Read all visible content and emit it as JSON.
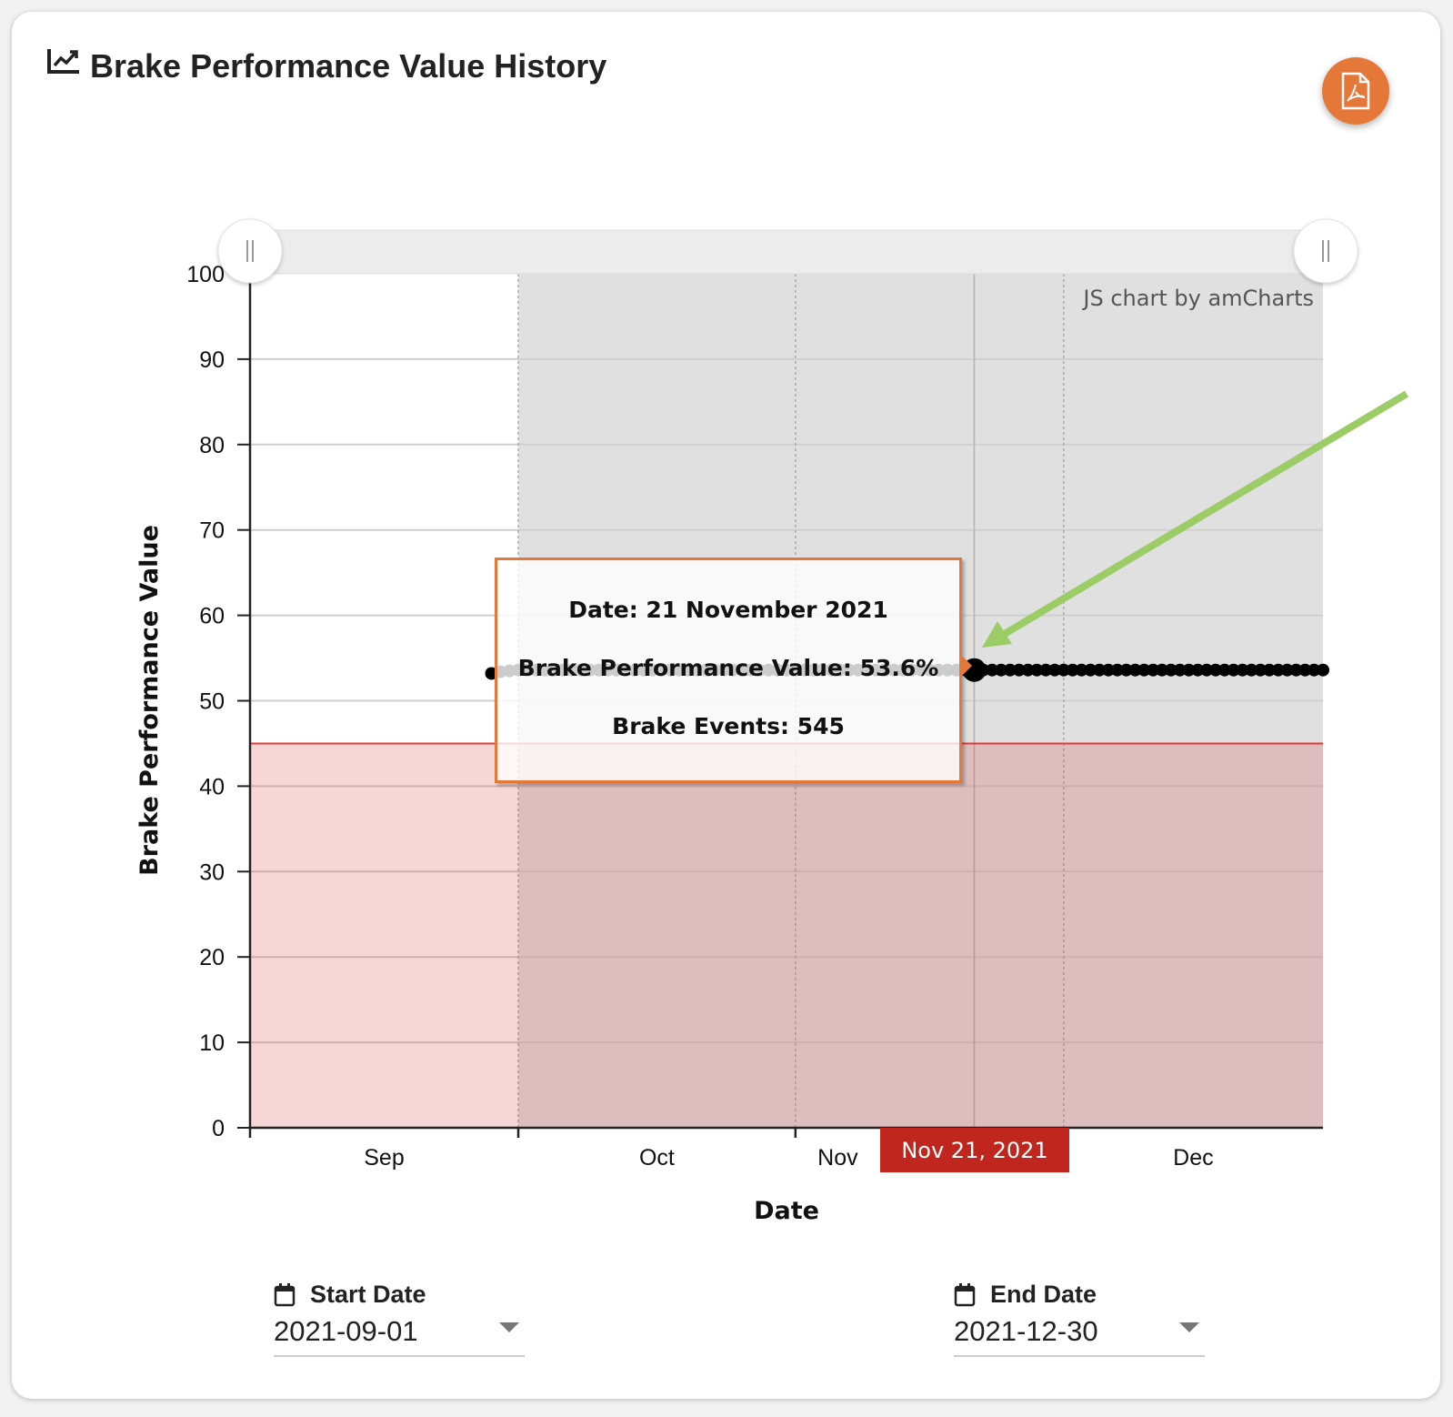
{
  "header": {
    "title": "Brake Performance Value History",
    "icon": "chart-line-icon",
    "pdf_button_icon": "file-pdf-icon"
  },
  "watermark": "JS chart by amCharts",
  "tooltip": {
    "date_line": "Date: 21 November 2021",
    "value_line": "Brake Performance Value: 53.6%",
    "events_line": "Brake Events: 545"
  },
  "cursor_label": "Nov 21, 2021",
  "filters": {
    "start": {
      "label": "Start Date",
      "value": "2021-09-01",
      "icon": "calendar-icon"
    },
    "end": {
      "label": "End Date",
      "value": "2021-12-30",
      "icon": "calendar-icon"
    }
  },
  "colors": {
    "accent": "#e57838",
    "line": "#000000",
    "threshold": "#e53935",
    "cursor_label": "#c0261d",
    "annotation_arrow": "#9ccc65",
    "shaded_range": "#e0e0e0"
  },
  "chart_data": {
    "type": "line",
    "title": "Brake Performance Value History",
    "xlabel": "Date",
    "ylabel": "Brake Performance Value",
    "xlim": [
      "2021-09-01",
      "2021-12-30"
    ],
    "ylim": [
      0,
      100
    ],
    "yticks": [
      "0",
      "10",
      "20",
      "30",
      "40",
      "50",
      "60",
      "70",
      "80",
      "90",
      "100"
    ],
    "xticks": [
      {
        "label": "Sep",
        "date": "2021-09-01"
      },
      {
        "label": "Oct",
        "date": "2021-10-01"
      },
      {
        "label": "Nov",
        "date": "2021-11-01"
      },
      {
        "label": "Dec",
        "date": "2021-12-01"
      }
    ],
    "grid": true,
    "threshold": 45,
    "shaded_range": [
      "2021-10-01",
      "2021-12-30"
    ],
    "cursor_date": "2021-11-21",
    "series": [
      {
        "start": "2021-09-28",
        "interval": "day",
        "values": [
          53.2,
          53.4,
          53.5,
          53.6,
          53.6,
          53.6,
          53.6,
          53.6,
          53.6,
          53.6,
          53.6,
          53.6,
          53.6,
          53.6,
          53.6,
          53.6,
          53.6,
          53.6,
          53.6,
          53.6,
          53.6,
          53.6,
          53.6,
          53.6,
          53.6,
          53.6,
          53.6,
          53.6,
          53.6,
          53.6,
          53.6,
          53.6,
          53.6,
          53.6,
          53.6,
          53.6,
          53.6,
          53.6,
          53.6,
          53.6,
          53.6,
          53.6,
          53.6,
          53.6,
          53.6,
          53.6,
          53.6,
          53.6,
          53.6,
          53.6,
          53.6,
          53.6,
          53.6,
          53.6,
          53.6,
          53.6,
          53.6,
          53.6,
          53.6,
          53.6,
          53.6,
          53.6,
          53.6,
          53.6,
          53.6,
          53.6,
          53.6,
          53.6,
          53.6,
          53.6,
          53.6,
          53.6,
          53.6,
          53.6,
          53.6,
          53.6,
          53.6,
          53.6,
          53.6,
          53.6,
          53.6,
          53.6,
          53.6,
          53.6,
          53.6,
          53.6,
          53.6,
          53.6,
          53.6,
          53.6,
          53.6,
          53.6,
          53.6,
          53.6
        ]
      }
    ]
  }
}
